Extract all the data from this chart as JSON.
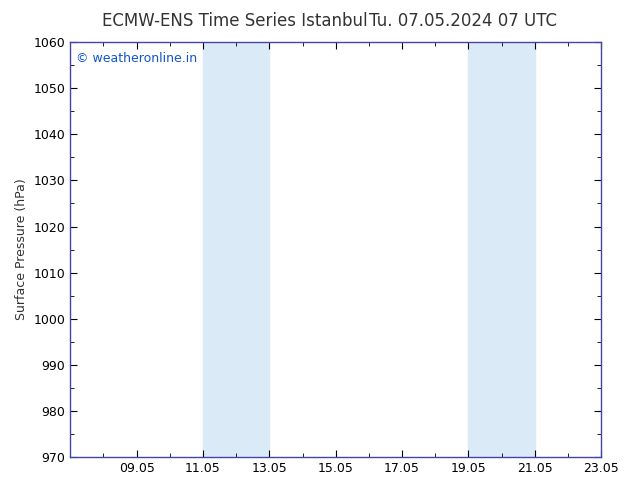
{
  "title_left": "ECMW-ENS Time Series Istanbul",
  "title_right": "Tu. 07.05.2024 07 UTC",
  "ylabel": "Surface Pressure (hPa)",
  "ylim": [
    970,
    1060
  ],
  "yticks": [
    970,
    980,
    990,
    1000,
    1010,
    1020,
    1030,
    1040,
    1050,
    1060
  ],
  "xlim": [
    0,
    16
  ],
  "xtick_labels": [
    "09.05",
    "11.05",
    "13.05",
    "15.05",
    "17.05",
    "19.05",
    "21.05",
    "23.05"
  ],
  "xtick_positions": [
    2,
    4,
    6,
    8,
    10,
    12,
    14,
    16
  ],
  "shaded_bands": [
    {
      "x_start": 4,
      "x_end": 6
    },
    {
      "x_start": 12,
      "x_end": 14
    }
  ],
  "shade_color": "#daeaf7",
  "background_color": "#ffffff",
  "spine_color": "#4444aa",
  "watermark_text": "© weatheronline.in",
  "watermark_color": "#1155cc",
  "title_fontsize": 12,
  "axis_fontsize": 9,
  "tick_fontsize": 9,
  "watermark_fontsize": 9,
  "title_color": "#333333"
}
